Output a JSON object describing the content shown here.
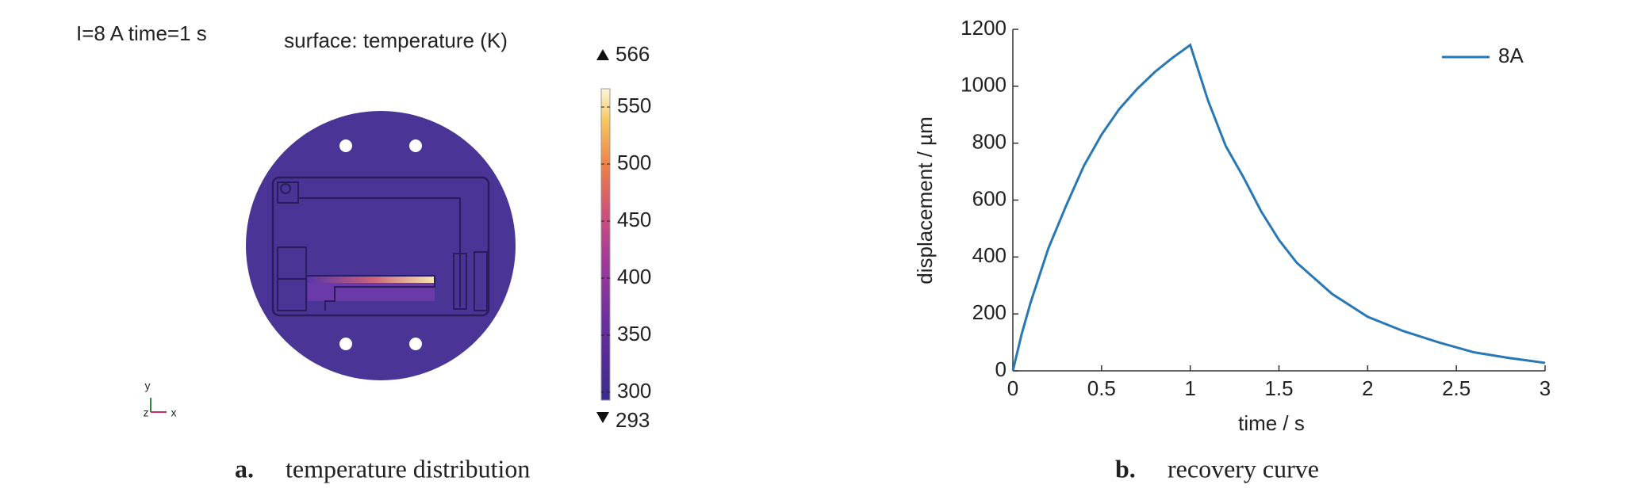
{
  "chart_data": [
    {
      "type": "colorbar",
      "annotation": "I=8 A   time=1 s",
      "title": "surface: temperature (K)",
      "range": [
        293,
        566
      ],
      "ticks": [
        300,
        350,
        400,
        450,
        500,
        550
      ],
      "axis_triad": [
        "y",
        "z",
        "x"
      ],
      "label": "a.",
      "caption": "temperature distribution"
    },
    {
      "type": "line",
      "x": [
        0,
        0.05,
        0.1,
        0.2,
        0.3,
        0.4,
        0.5,
        0.6,
        0.7,
        0.8,
        0.9,
        1.0,
        1.1,
        1.2,
        1.3,
        1.4,
        1.5,
        1.6,
        1.8,
        2.0,
        2.2,
        2.4,
        2.6,
        2.8,
        3.0
      ],
      "series": [
        {
          "name": "8A",
          "color": "#2878b5",
          "values": [
            0,
            130,
            240,
            430,
            580,
            720,
            830,
            920,
            990,
            1050,
            1100,
            1145,
            950,
            790,
            680,
            560,
            460,
            380,
            270,
            190,
            140,
            100,
            65,
            45,
            28
          ]
        }
      ],
      "xlabel": "time / s",
      "ylabel": "displacement / µm",
      "xlim": [
        0,
        3
      ],
      "xticks": [
        0,
        0.5,
        1,
        1.5,
        2,
        2.5,
        3
      ],
      "ylim": [
        0,
        1200
      ],
      "yticks": [
        0,
        200,
        400,
        600,
        800,
        1000,
        1200
      ],
      "legend": "upper right",
      "label": "b.",
      "caption": "recovery curve"
    }
  ]
}
